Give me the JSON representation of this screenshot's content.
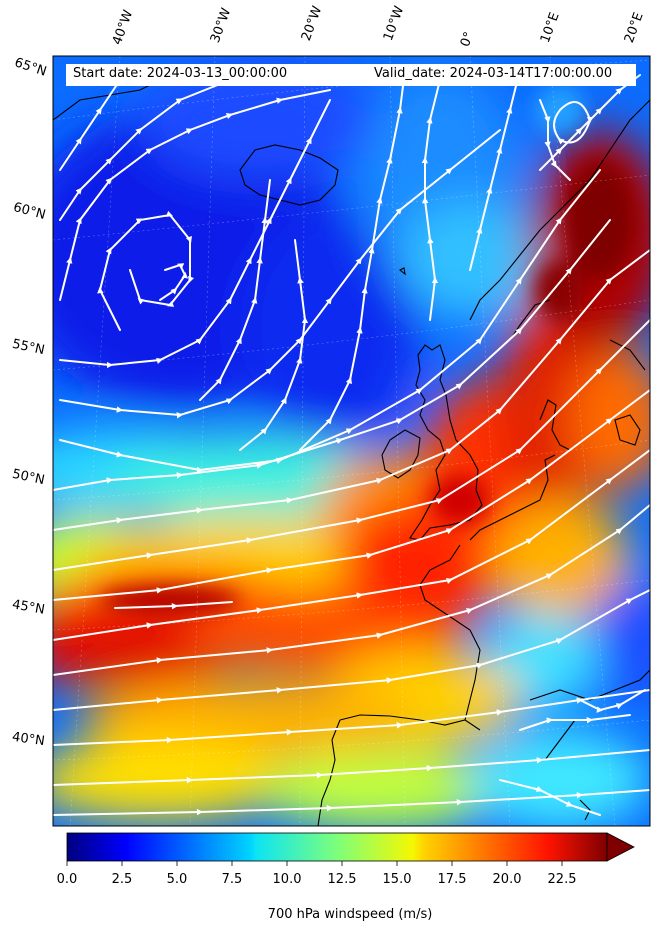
{
  "map": {
    "start_date": "Start date: 2024-03-13_00:00:00",
    "valid_date": "Valid_date: 2024-03-14T17:00:00.00",
    "longitude_labels": [
      "40°W",
      "30°W",
      "20°W",
      "10°W",
      "0°",
      "10°E",
      "20°E"
    ],
    "latitude_labels": [
      "65°N",
      "60°N",
      "55°N",
      "50°N",
      "45°N",
      "40°N"
    ],
    "colorbar": {
      "label": "700 hPa windspeed (m/s)",
      "ticks": [
        "0.0",
        "2.5",
        "5.0",
        "7.5",
        "10.0",
        "12.5",
        "15.0",
        "17.5",
        "20.0",
        "22.5"
      ],
      "min": 0,
      "max": 25,
      "extend": "max",
      "colormap": "jet"
    },
    "colors": {
      "streamline": "#ffffff",
      "coastline": "#000000"
    }
  }
}
